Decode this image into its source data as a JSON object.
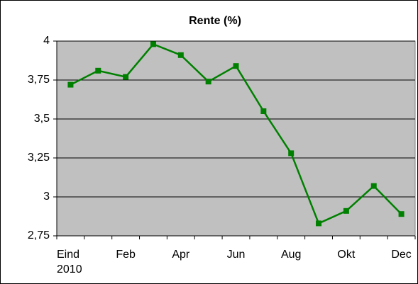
{
  "chart_data": {
    "type": "line",
    "title": "Rente (%)",
    "categories": [
      "Eind 2010",
      null,
      "Feb",
      null,
      "Apr",
      null,
      "Jun",
      null,
      "Aug",
      null,
      "Okt",
      null,
      "Dec"
    ],
    "series": [
      {
        "name": "Rente",
        "color": "#008000",
        "values": [
          3.72,
          3.81,
          3.77,
          3.98,
          3.91,
          3.74,
          3.84,
          3.55,
          3.28,
          2.83,
          2.91,
          3.07,
          2.89
        ]
      }
    ],
    "ylim": [
      2.75,
      4
    ],
    "yticks": [
      {
        "value": 2.75,
        "label": "2,75"
      },
      {
        "value": 3,
        "label": "3"
      },
      {
        "value": 3.25,
        "label": "3,25"
      },
      {
        "value": 3.5,
        "label": "3,5"
      },
      {
        "value": 3.75,
        "label": "3,75"
      },
      {
        "value": 4,
        "label": "4"
      }
    ],
    "grid": true,
    "plot_background": "#c0c0c0"
  }
}
